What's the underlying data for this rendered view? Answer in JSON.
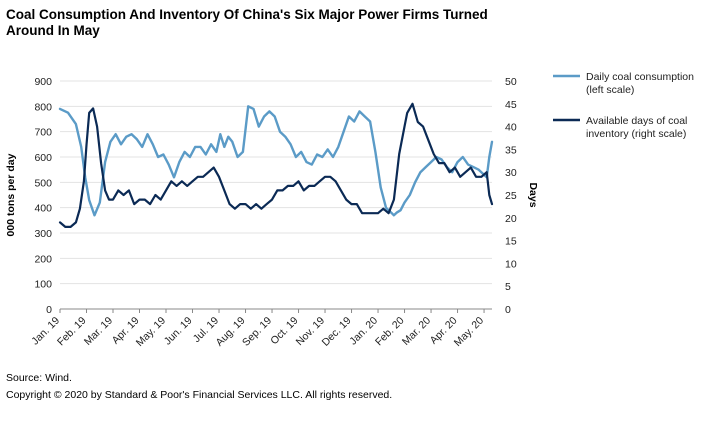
{
  "title": "Coal Consumption And Inventory Of China's Six Major Power Firms Turned Around In May",
  "source": "Source: Wind.",
  "copyright": "Copyright © 2020 by Standard & Poor's Financial Services LLC. All rights reserved.",
  "colors": {
    "consumption": "#5b9bc7",
    "inventory": "#0b2a55",
    "grid": "#e3e3e3",
    "axis": "#888888"
  },
  "chart_data": {
    "type": "line",
    "title": "Coal Consumption And Inventory Of China's Six Major Power Firms Turned Around In May",
    "ylabel": "000  tons per day",
    "y2label": "Days",
    "ylim": [
      0,
      900
    ],
    "y2lim": [
      0,
      50
    ],
    "yticks": [
      "0",
      "100",
      "200",
      "300",
      "400",
      "500",
      "600",
      "700",
      "800",
      "900"
    ],
    "y2ticks": [
      "0",
      "5",
      "10",
      "15",
      "20",
      "25",
      "30",
      "35",
      "40",
      "45",
      "50"
    ],
    "xticks": [
      "Jan. 19",
      "Feb. 19",
      "Mar. 19",
      "Apr. 19",
      "May. 19",
      "Jun. 19",
      "Jul. 19",
      "Aug. 19",
      "Sep. 19",
      "Oct. 19",
      "Nov. 19",
      "Dec. 19",
      "Jan. 20",
      "Feb. 20",
      "Mar. 20",
      "Apr. 20",
      "May. 20"
    ],
    "grid": true,
    "legend_position": "right",
    "series": [
      {
        "name": "Daily coal consumption (left scale)",
        "axis": "left",
        "x": [
          0,
          0.3,
          0.6,
          0.8,
          0.95,
          1.1,
          1.3,
          1.5,
          1.7,
          1.9,
          2.1,
          2.3,
          2.5,
          2.7,
          2.9,
          3.1,
          3.3,
          3.5,
          3.7,
          3.9,
          4.1,
          4.3,
          4.5,
          4.7,
          4.9,
          5.1,
          5.3,
          5.5,
          5.7,
          5.9,
          6.05,
          6.2,
          6.35,
          6.5,
          6.7,
          6.9,
          7.1,
          7.3,
          7.5,
          7.7,
          7.9,
          8.1,
          8.3,
          8.5,
          8.7,
          8.9,
          9.1,
          9.3,
          9.5,
          9.7,
          9.9,
          10.1,
          10.3,
          10.5,
          10.7,
          10.9,
          11.1,
          11.3,
          11.5,
          11.7,
          11.9,
          12.1,
          12.3,
          12.5,
          12.6,
          12.7,
          12.85,
          13.0,
          13.2,
          13.4,
          13.6,
          13.8,
          14.0,
          14.2,
          14.4,
          14.6,
          14.8,
          15.0,
          15.2,
          15.4,
          15.6,
          15.8,
          16.0,
          16.1,
          16.2,
          16.3
        ],
        "y": [
          790,
          775,
          730,
          640,
          520,
          430,
          370,
          420,
          580,
          660,
          690,
          650,
          680,
          690,
          670,
          640,
          690,
          650,
          600,
          610,
          570,
          520,
          580,
          620,
          600,
          640,
          640,
          610,
          650,
          620,
          690,
          640,
          680,
          660,
          600,
          620,
          800,
          790,
          720,
          760,
          780,
          760,
          700,
          680,
          650,
          600,
          620,
          580,
          570,
          610,
          600,
          630,
          600,
          640,
          700,
          760,
          740,
          780,
          760,
          740,
          620,
          480,
          400,
          380,
          370,
          380,
          390,
          420,
          450,
          500,
          540,
          560,
          580,
          600,
          590,
          560,
          540,
          580,
          600,
          570,
          560,
          550,
          530,
          520,
          600,
          660
        ]
      },
      {
        "name": "Available days of coal inventory (right scale)",
        "axis": "right",
        "x": [
          0,
          0.2,
          0.4,
          0.6,
          0.75,
          0.9,
          1.0,
          1.1,
          1.25,
          1.4,
          1.55,
          1.7,
          1.85,
          2.0,
          2.2,
          2.4,
          2.6,
          2.8,
          3.0,
          3.2,
          3.4,
          3.6,
          3.8,
          4.0,
          4.2,
          4.4,
          4.6,
          4.8,
          5.0,
          5.2,
          5.4,
          5.6,
          5.8,
          6.0,
          6.2,
          6.4,
          6.6,
          6.8,
          7.0,
          7.2,
          7.4,
          7.6,
          7.8,
          8.0,
          8.2,
          8.4,
          8.6,
          8.8,
          9.0,
          9.2,
          9.4,
          9.6,
          9.8,
          10.0,
          10.2,
          10.4,
          10.6,
          10.8,
          11.0,
          11.2,
          11.4,
          11.6,
          11.8,
          12.0,
          12.2,
          12.4,
          12.6,
          12.8,
          13.0,
          13.1,
          13.3,
          13.5,
          13.7,
          13.9,
          14.1,
          14.3,
          14.5,
          14.7,
          14.9,
          15.1,
          15.3,
          15.5,
          15.7,
          15.9,
          16.1,
          16.2,
          16.3
        ],
        "y": [
          19,
          18,
          18,
          19,
          22,
          28,
          36,
          43,
          44,
          40,
          32,
          26,
          24,
          24,
          26,
          25,
          26,
          23,
          24,
          24,
          23,
          25,
          24,
          26,
          28,
          27,
          28,
          27,
          28,
          29,
          29,
          30,
          31,
          29,
          26,
          23,
          22,
          23,
          23,
          22,
          23,
          22,
          23,
          24,
          26,
          26,
          27,
          27,
          28,
          26,
          27,
          27,
          28,
          29,
          29,
          28,
          26,
          24,
          23,
          23,
          21,
          21,
          21,
          21,
          22,
          21,
          24,
          34,
          40,
          43,
          45,
          41,
          40,
          37,
          34,
          32,
          32,
          30,
          31,
          29,
          30,
          31,
          29,
          29,
          30,
          25,
          23
        ]
      }
    ]
  }
}
